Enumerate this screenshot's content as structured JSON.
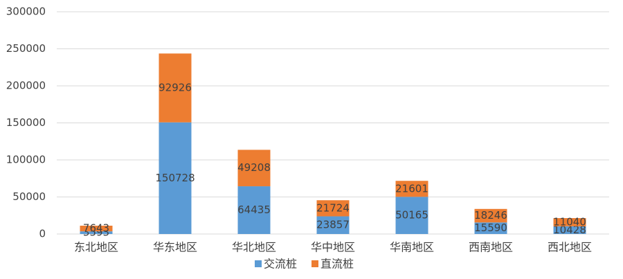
{
  "chart_data": {
    "type": "stacked_bar",
    "categories": [
      "东北地区",
      "华东地区",
      "华北地区",
      "华中地区",
      "华南地区",
      "西南地区",
      "西北地区"
    ],
    "series": [
      {
        "name": "交流桩",
        "color": "#5b9bd5",
        "values": [
          3593,
          150728,
          64435,
          23857,
          50165,
          15590,
          10428
        ]
      },
      {
        "name": "直流桩",
        "color": "#ed7d31",
        "values": [
          7643,
          92926,
          49208,
          21724,
          21601,
          18246,
          11040
        ]
      }
    ],
    "ylim": [
      0,
      300000
    ],
    "yticks": [
      0,
      50000,
      100000,
      150000,
      200000,
      250000,
      300000
    ],
    "grid": true,
    "legend": "bottom"
  }
}
